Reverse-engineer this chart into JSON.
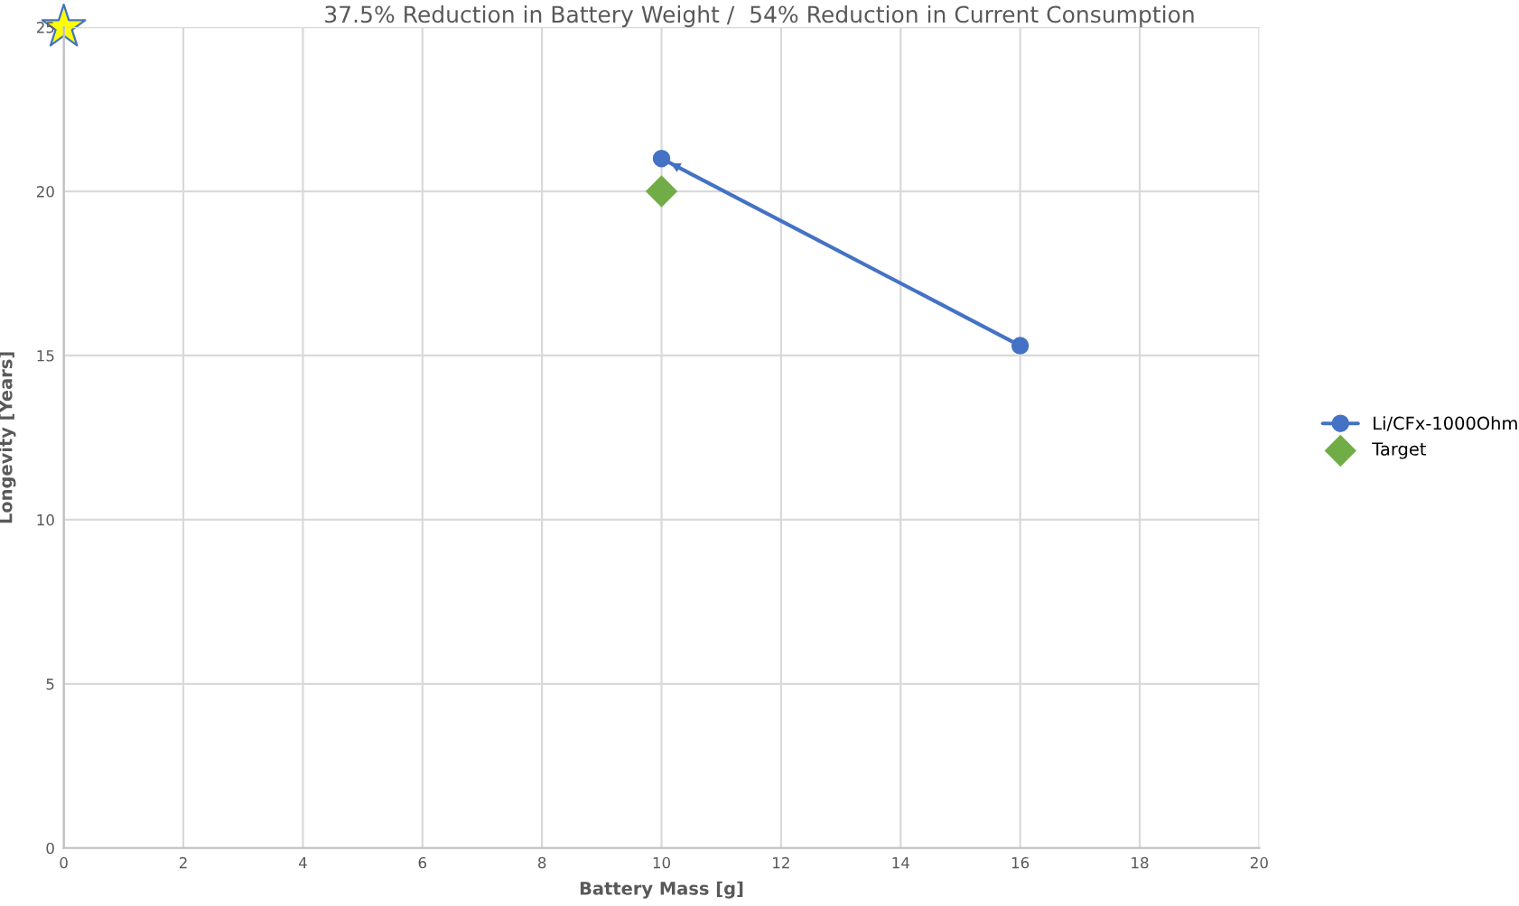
{
  "chart_data": {
    "type": "line",
    "title": "37.5% Reduction in Battery Weight /  54% Reduction in Current Consumption",
    "xlabel": "Battery Mass [g]",
    "ylabel": "Longevity [Years]",
    "xlim": [
      0,
      20
    ],
    "xticks": [
      0,
      2,
      4,
      6,
      8,
      10,
      12,
      14,
      16,
      18,
      20
    ],
    "ylim": [
      0,
      25
    ],
    "yticks": [
      0,
      5,
      10,
      15,
      20,
      25
    ],
    "grid": true,
    "legend": "right",
    "series": [
      {
        "name": "Li/CFx-1000Ohm",
        "color": "#4472c4",
        "marker": "circle",
        "x": [
          16,
          10
        ],
        "values": [
          15.3,
          21
        ]
      },
      {
        "name": "Target",
        "type": "scatter",
        "color": "#70ad47",
        "marker": "diamond",
        "x": [
          10
        ],
        "values": [
          20
        ]
      },
      {
        "type": "scatter",
        "color": "#ffff00",
        "marker": "star",
        "x": [
          0
        ],
        "values": [
          25
        ]
      }
    ]
  }
}
